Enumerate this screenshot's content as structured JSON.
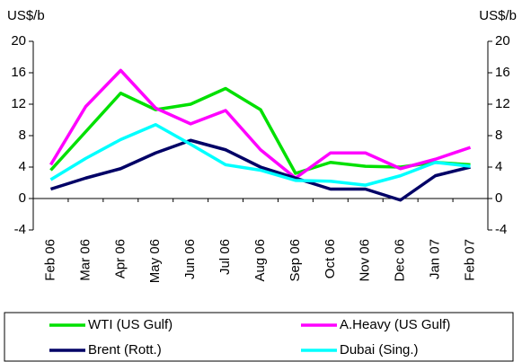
{
  "chart_data": {
    "type": "line",
    "ylabel": "US$/b",
    "y2label": "US$/b",
    "categories": [
      "Feb 06",
      "Mar 06",
      "Apr 06",
      "May 06",
      "Jun 06",
      "Jul 06",
      "Aug 06",
      "Sep 06",
      "Oct 06",
      "Nov 06",
      "Dec 06",
      "Jan 07",
      "Feb 07"
    ],
    "series": [
      {
        "name": "WTI (US Gulf)",
        "color": "#00e000",
        "values": [
          3.6,
          8.5,
          13.4,
          11.3,
          12,
          14,
          11.3,
          3.2,
          4.6,
          4.1,
          4,
          4.6,
          4.3
        ]
      },
      {
        "name": "A.Heavy (US Gulf)",
        "color": "#ff00ff",
        "values": [
          4.3,
          11.7,
          16.3,
          11.5,
          9.5,
          11.2,
          6.2,
          2.6,
          5.8,
          5.8,
          3.8,
          5,
          6.5
        ]
      },
      {
        "name": "Brent (Rott.)",
        "color": "#000066",
        "values": [
          1.2,
          2.6,
          3.8,
          5.8,
          7.4,
          6.2,
          4,
          2.6,
          1.2,
          1.2,
          -0.2,
          2.9,
          4
        ]
      },
      {
        "name": "Dubai (Sing.)",
        "color": "#00ffff",
        "values": [
          2.4,
          5.1,
          7.5,
          9.4,
          6.9,
          4.3,
          3.6,
          2.3,
          2.2,
          1.7,
          2.9,
          4.6,
          4.1
        ]
      }
    ],
    "ylim": [
      -4,
      20
    ],
    "yticks": [
      -4,
      0,
      4,
      8,
      12,
      16,
      20
    ],
    "y2lim": [
      -4,
      20
    ],
    "y2ticks": [
      -4,
      0,
      4,
      8,
      12,
      16,
      20
    ]
  }
}
